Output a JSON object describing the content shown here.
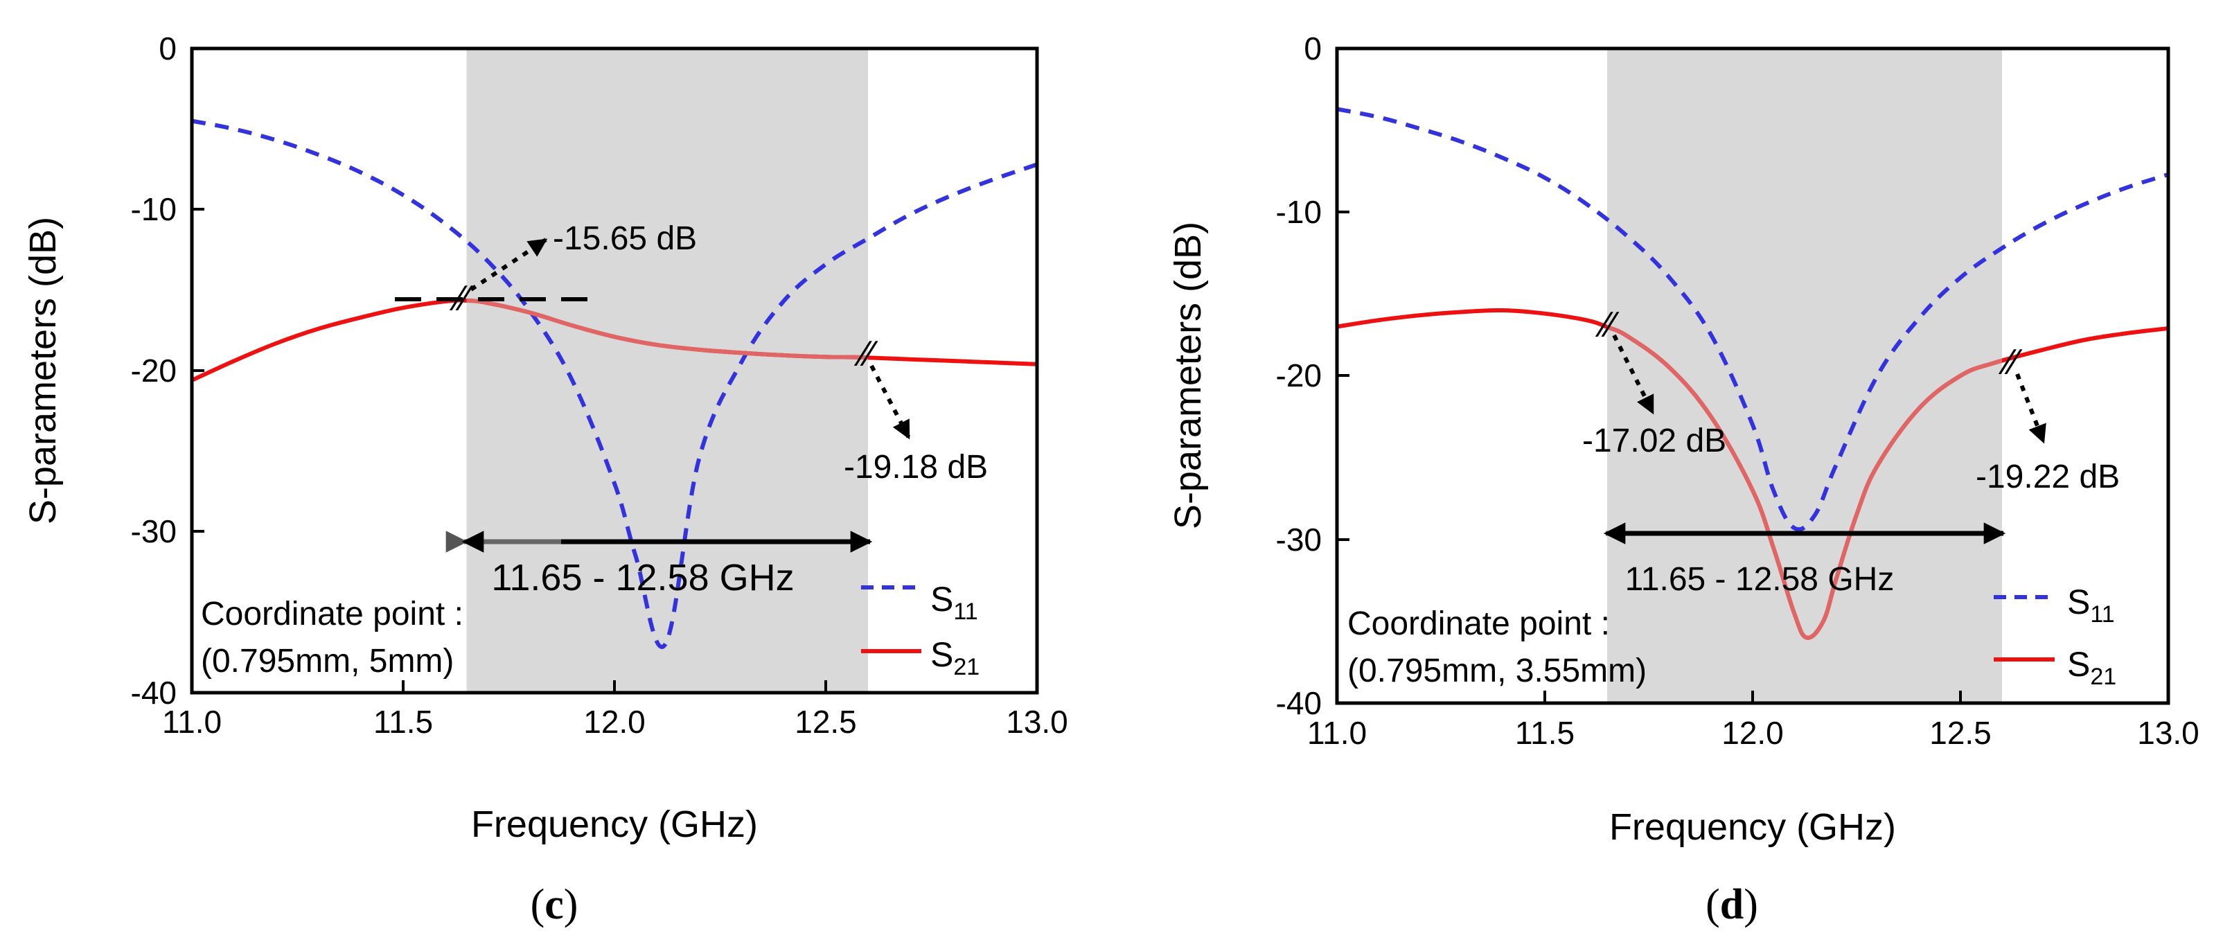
{
  "colors": {
    "s11": "#3333dd",
    "s21": "#ee1111",
    "s21_in_band": "#e06666",
    "band_fill": "#d9d9d9",
    "annotation": "#000000"
  },
  "chart_data": [
    {
      "type": "line",
      "panel_label": "c",
      "xlabel": "Frequency (GHz)",
      "ylabel": "S-parameters (dB)",
      "xlim": [
        11.0,
        13.0
      ],
      "ylim": [
        -40,
        0
      ],
      "x_ticks": [
        "11.0",
        "11.5",
        "12.0",
        "12.5",
        "13.0"
      ],
      "y_ticks": [
        "0",
        "-10",
        "-20",
        "-30",
        "-40"
      ],
      "grid": false,
      "legend_position": "bottom-right",
      "band": {
        "start": 11.65,
        "end": 12.6,
        "label": "11.65 - 12.58 GHz"
      },
      "coord_note": [
        "Coordinate point :",
        "(0.795mm, 5mm)"
      ],
      "series": [
        {
          "name": "S11",
          "legend_main": "S",
          "legend_sub": "11",
          "style": "dashed",
          "x": [
            11.0,
            11.1,
            11.2,
            11.3,
            11.4,
            11.5,
            11.6,
            11.7,
            11.8,
            11.9,
            12.0,
            12.05,
            12.12,
            12.2,
            12.3,
            12.4,
            12.5,
            12.6,
            12.7,
            12.8,
            12.9,
            13.0
          ],
          "y": [
            -4.5,
            -5.0,
            -5.7,
            -6.6,
            -7.7,
            -9.1,
            -10.9,
            -13.2,
            -16.3,
            -20.6,
            -27.0,
            -31.5,
            -37.0,
            -25.5,
            -19.5,
            -15.7,
            -13.4,
            -11.8,
            -10.3,
            -9.1,
            -8.1,
            -7.2
          ]
        },
        {
          "name": "S21",
          "legend_main": "S",
          "legend_sub": "21",
          "style": "solid",
          "x": [
            11.0,
            11.1,
            11.2,
            11.3,
            11.4,
            11.5,
            11.6,
            11.65,
            11.7,
            11.8,
            11.9,
            12.0,
            12.1,
            12.2,
            12.3,
            12.4,
            12.5,
            12.58,
            12.7,
            12.8,
            12.9,
            13.0
          ],
          "y": [
            -20.6,
            -19.4,
            -18.3,
            -17.4,
            -16.7,
            -16.1,
            -15.7,
            -15.65,
            -15.8,
            -16.4,
            -17.2,
            -17.9,
            -18.4,
            -18.7,
            -18.9,
            -19.05,
            -19.15,
            -19.18,
            -19.3,
            -19.4,
            -19.5,
            -19.6
          ]
        }
      ],
      "annotations": [
        {
          "text": "-15.65 dB",
          "x": 11.65,
          "y": -15.65
        },
        {
          "text": "-19.18 dB",
          "x": 12.58,
          "y": -19.18
        }
      ]
    },
    {
      "type": "line",
      "panel_label": "d",
      "xlabel": "Frequency (GHz)",
      "ylabel": "S-parameters (dB)",
      "xlim": [
        11.0,
        13.0
      ],
      "ylim": [
        -40,
        0
      ],
      "x_ticks": [
        "11.0",
        "11.5",
        "12.0",
        "12.5",
        "13.0"
      ],
      "y_ticks": [
        "0",
        "-10",
        "-20",
        "-30",
        "-40"
      ],
      "grid": false,
      "legend_position": "bottom-right",
      "band": {
        "start": 11.65,
        "end": 12.6,
        "label": "11.65 - 12.58 GHz"
      },
      "coord_note": [
        "Coordinate point :",
        "(0.795mm, 3.55mm)"
      ],
      "series": [
        {
          "name": "S11",
          "legend_main": "S",
          "legend_sub": "11",
          "style": "dashed",
          "x": [
            11.0,
            11.1,
            11.2,
            11.3,
            11.4,
            11.5,
            11.6,
            11.7,
            11.8,
            11.9,
            12.0,
            12.05,
            12.1,
            12.15,
            12.2,
            12.3,
            12.4,
            12.5,
            12.6,
            12.7,
            12.8,
            12.9,
            13.0
          ],
          "y": [
            -3.7,
            -4.2,
            -4.9,
            -5.7,
            -6.7,
            -7.9,
            -9.5,
            -11.5,
            -14.0,
            -17.5,
            -23.0,
            -27.0,
            -29.3,
            -28.5,
            -25.5,
            -20.0,
            -16.5,
            -14.0,
            -12.2,
            -10.7,
            -9.5,
            -8.5,
            -7.7
          ]
        },
        {
          "name": "S21",
          "legend_main": "S",
          "legend_sub": "21",
          "style": "solid",
          "x": [
            11.0,
            11.1,
            11.2,
            11.3,
            11.4,
            11.5,
            11.6,
            11.65,
            11.7,
            11.8,
            11.9,
            12.0,
            12.05,
            12.1,
            12.13,
            12.17,
            12.2,
            12.25,
            12.3,
            12.4,
            12.5,
            12.58,
            12.7,
            12.8,
            12.9,
            13.0
          ],
          "y": [
            -17.0,
            -16.6,
            -16.3,
            -16.1,
            -16.0,
            -16.2,
            -16.6,
            -17.02,
            -17.6,
            -19.5,
            -22.5,
            -27.0,
            -30.5,
            -34.5,
            -36.0,
            -35.0,
            -32.5,
            -28.5,
            -25.5,
            -22.0,
            -20.0,
            -19.22,
            -18.4,
            -17.8,
            -17.4,
            -17.1
          ]
        }
      ],
      "annotations": [
        {
          "text": "-17.02 dB",
          "x": 11.65,
          "y": -17.02
        },
        {
          "text": "-19.22 dB",
          "x": 12.58,
          "y": -19.22
        }
      ]
    }
  ]
}
